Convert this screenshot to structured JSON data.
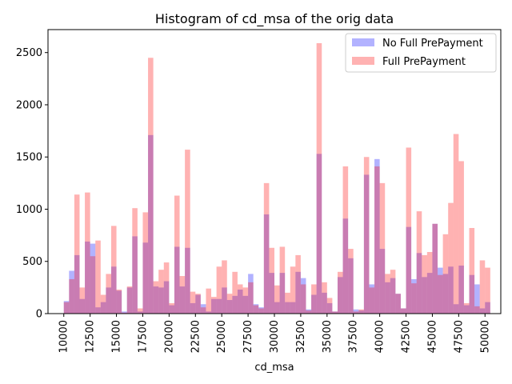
{
  "chart_data": {
    "type": "bar",
    "title": "Histogram of cd_msa of the orig data",
    "xlabel": "cd_msa",
    "ylabel": "",
    "xlim": [
      8500,
      51500
    ],
    "ylim": [
      0,
      2720
    ],
    "bin_width": 500,
    "x_ticks": [
      10000,
      12500,
      15000,
      17500,
      20000,
      22500,
      25000,
      27500,
      30000,
      32500,
      35000,
      37500,
      40000,
      42500,
      45000,
      47500,
      50000
    ],
    "y_ticks": [
      0,
      500,
      1000,
      1500,
      2000,
      2500
    ],
    "legend": {
      "position": "top-right"
    },
    "series": [
      {
        "name": "No Full PrePayment",
        "color": "#0000ff",
        "bins": [
          [
            10000,
            120
          ],
          [
            10500,
            410
          ],
          [
            11000,
            560
          ],
          [
            11500,
            140
          ],
          [
            12000,
            690
          ],
          [
            12500,
            670
          ],
          [
            13000,
            60
          ],
          [
            13500,
            110
          ],
          [
            14000,
            250
          ],
          [
            14500,
            450
          ],
          [
            15000,
            220
          ],
          [
            15500,
            20
          ],
          [
            16000,
            250
          ],
          [
            16500,
            740
          ],
          [
            17000,
            20
          ],
          [
            17500,
            680
          ],
          [
            18000,
            1710
          ],
          [
            18500,
            260
          ],
          [
            19000,
            250
          ],
          [
            19500,
            310
          ],
          [
            20000,
            80
          ],
          [
            20500,
            640
          ],
          [
            21000,
            260
          ],
          [
            21500,
            630
          ],
          [
            22000,
            100
          ],
          [
            22500,
            180
          ],
          [
            23000,
            90
          ],
          [
            23500,
            20
          ],
          [
            24000,
            140
          ],
          [
            24500,
            140
          ],
          [
            25000,
            250
          ],
          [
            25500,
            130
          ],
          [
            26000,
            170
          ],
          [
            26500,
            230
          ],
          [
            27000,
            170
          ],
          [
            27500,
            380
          ],
          [
            28000,
            90
          ],
          [
            28500,
            60
          ],
          [
            29000,
            950
          ],
          [
            29500,
            390
          ],
          [
            30000,
            110
          ],
          [
            30500,
            390
          ],
          [
            31000,
            110
          ],
          [
            31500,
            110
          ],
          [
            32000,
            400
          ],
          [
            32500,
            340
          ],
          [
            33000,
            40
          ],
          [
            33500,
            180
          ],
          [
            34000,
            1530
          ],
          [
            34500,
            200
          ],
          [
            35000,
            100
          ],
          [
            35500,
            20
          ],
          [
            36000,
            350
          ],
          [
            36500,
            910
          ],
          [
            37000,
            530
          ],
          [
            37500,
            40
          ],
          [
            38000,
            30
          ],
          [
            38500,
            1330
          ],
          [
            39000,
            280
          ],
          [
            39500,
            1480
          ],
          [
            40000,
            620
          ],
          [
            40500,
            300
          ],
          [
            41000,
            340
          ],
          [
            41500,
            190
          ],
          [
            42000,
            50
          ],
          [
            42500,
            830
          ],
          [
            43000,
            330
          ],
          [
            43500,
            580
          ],
          [
            44000,
            350
          ],
          [
            44500,
            390
          ],
          [
            45000,
            860
          ],
          [
            45500,
            440
          ],
          [
            46000,
            380
          ],
          [
            46500,
            450
          ],
          [
            47000,
            90
          ],
          [
            47500,
            460
          ],
          [
            48000,
            80
          ],
          [
            48500,
            370
          ],
          [
            49000,
            280
          ],
          [
            49500,
            50
          ],
          [
            50000,
            110
          ]
        ]
      },
      {
        "name": "Full PrePayment",
        "color": "#ff0000",
        "bins": [
          [
            10000,
            110
          ],
          [
            10500,
            330
          ],
          [
            11000,
            1140
          ],
          [
            11500,
            250
          ],
          [
            12000,
            1160
          ],
          [
            12500,
            550
          ],
          [
            13000,
            700
          ],
          [
            13500,
            180
          ],
          [
            14000,
            380
          ],
          [
            14500,
            840
          ],
          [
            15000,
            230
          ],
          [
            15500,
            10
          ],
          [
            16000,
            260
          ],
          [
            16500,
            1010
          ],
          [
            17000,
            50
          ],
          [
            17500,
            970
          ],
          [
            18000,
            2450
          ],
          [
            18500,
            310
          ],
          [
            19000,
            420
          ],
          [
            19500,
            490
          ],
          [
            20000,
            100
          ],
          [
            20500,
            1130
          ],
          [
            21000,
            360
          ],
          [
            21500,
            1570
          ],
          [
            22000,
            210
          ],
          [
            22500,
            190
          ],
          [
            23000,
            60
          ],
          [
            23500,
            240
          ],
          [
            24000,
            160
          ],
          [
            24500,
            450
          ],
          [
            25000,
            510
          ],
          [
            25500,
            190
          ],
          [
            26000,
            400
          ],
          [
            26500,
            280
          ],
          [
            27000,
            250
          ],
          [
            27500,
            300
          ],
          [
            28000,
            80
          ],
          [
            28500,
            50
          ],
          [
            29000,
            1250
          ],
          [
            29500,
            630
          ],
          [
            30000,
            270
          ],
          [
            30500,
            640
          ],
          [
            31000,
            200
          ],
          [
            31500,
            450
          ],
          [
            32000,
            560
          ],
          [
            32500,
            280
          ],
          [
            33000,
            30
          ],
          [
            33500,
            280
          ],
          [
            34000,
            2590
          ],
          [
            34500,
            300
          ],
          [
            35000,
            150
          ],
          [
            35500,
            20
          ],
          [
            36000,
            400
          ],
          [
            36500,
            1410
          ],
          [
            37000,
            620
          ],
          [
            37500,
            20
          ],
          [
            38000,
            40
          ],
          [
            38500,
            1500
          ],
          [
            39000,
            250
          ],
          [
            39500,
            1410
          ],
          [
            40000,
            1250
          ],
          [
            40500,
            380
          ],
          [
            41000,
            420
          ],
          [
            41500,
            190
          ],
          [
            42000,
            50
          ],
          [
            42500,
            1590
          ],
          [
            43000,
            290
          ],
          [
            43500,
            980
          ],
          [
            44000,
            560
          ],
          [
            44500,
            590
          ],
          [
            45000,
            860
          ],
          [
            45500,
            370
          ],
          [
            46000,
            760
          ],
          [
            46500,
            1060
          ],
          [
            47000,
            1720
          ],
          [
            47500,
            1460
          ],
          [
            48000,
            100
          ],
          [
            48500,
            820
          ],
          [
            49000,
            70
          ],
          [
            49500,
            510
          ],
          [
            50000,
            440
          ]
        ]
      }
    ]
  }
}
